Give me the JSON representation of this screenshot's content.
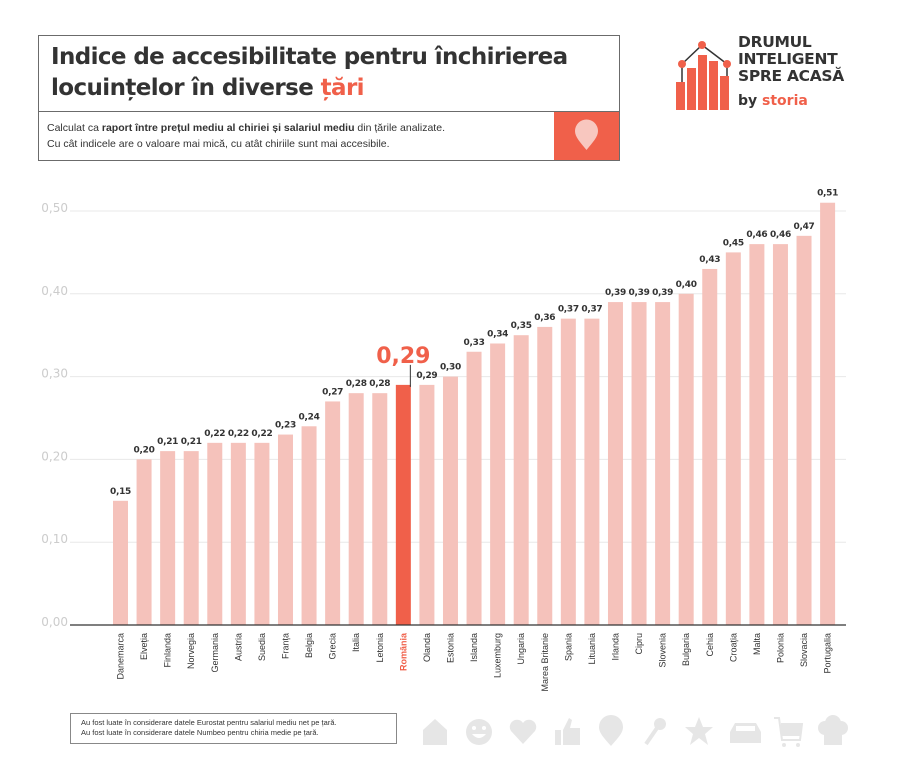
{
  "header": {
    "title_part1": "Indice de accesibilitate pentru închirierea",
    "title_part2": "locuințelor în diverse ",
    "title_accent": "țări",
    "subtitle_pre": "Calculat ca ",
    "subtitle_bold": "raport între prețul mediu al chiriei și salariul mediu",
    "subtitle_post": " din țările analizate.",
    "subtitle_line2": "Cu cât indicele are o valoare mai mică, cu atât chiriile sunt mai accesibile.",
    "pin_icon": "map-pin-icon"
  },
  "logo": {
    "line1": "DRUMUL",
    "line2": "INTELIGENT",
    "line3": "SPRE ACASĂ",
    "by": "by ",
    "brand": "storia"
  },
  "colors": {
    "accent": "#f0604a",
    "bar": "#f5c2bb",
    "grid": "#e8e8e8",
    "axis_label": "#cccccc",
    "text": "#333333"
  },
  "chart_data": {
    "type": "bar",
    "title": "Indice de accesibilitate pentru închirierea locuințelor în diverse țări",
    "xlabel": "",
    "ylabel": "",
    "ylim": [
      0,
      0.5
    ],
    "yticks": [
      "0,00",
      "0,10",
      "0,20",
      "0,30",
      "0,40",
      "0,50"
    ],
    "ytick_values": [
      0,
      0.1,
      0.2,
      0.3,
      0.4,
      0.5
    ],
    "grid": true,
    "highlight": "România",
    "categories": [
      "Danemarca",
      "Elveția",
      "Finlanda",
      "Norvegia",
      "Germania",
      "Austria",
      "Suedia",
      "Franța",
      "Belgia",
      "Grecia",
      "Italia",
      "Letonia",
      "România",
      "Olanda",
      "Estonia",
      "Islanda",
      "Luxemburg",
      "Ungaria",
      "Marea Britanie",
      "Spania",
      "Lituania",
      "Irlanda",
      "Cipru",
      "Slovenia",
      "Bulgaria",
      "Cehia",
      "Croația",
      "Malta",
      "Polonia",
      "Slovacia",
      "Portugalia"
    ],
    "values": [
      0.15,
      0.2,
      0.21,
      0.21,
      0.22,
      0.22,
      0.22,
      0.23,
      0.24,
      0.27,
      0.28,
      0.28,
      0.29,
      0.29,
      0.3,
      0.33,
      0.34,
      0.35,
      0.36,
      0.37,
      0.37,
      0.39,
      0.39,
      0.39,
      0.4,
      0.43,
      0.45,
      0.46,
      0.46,
      0.47,
      0.51
    ],
    "labels": [
      "0,15",
      "0,20",
      "0,21",
      "0,21",
      "0,22",
      "0,22",
      "0,22",
      "0,23",
      "0,24",
      "0,27",
      "0,28",
      "0,28",
      "0,29",
      "0,29",
      "0,30",
      "0,33",
      "0,34",
      "0,35",
      "0,36",
      "0,37",
      "0,37",
      "0,39",
      "0,39",
      "0,39",
      "0,40",
      "0,43",
      "0,45",
      "0,46",
      "0,46",
      "0,47",
      "0,51"
    ]
  },
  "notes": {
    "line1": "Au fost luate în considerare datele Eurostat pentru salariul mediu net pe țară.",
    "line2": "Au fost luate în considerare datele Numbeo pentru chiria medie pe țară."
  },
  "footer_icons": [
    "house-icon",
    "smiley-icon",
    "heart-icon",
    "thumbs-up-icon",
    "map-pin-icon",
    "key-icon",
    "star-icon",
    "car-icon",
    "cart-icon",
    "chef-hat-icon"
  ]
}
